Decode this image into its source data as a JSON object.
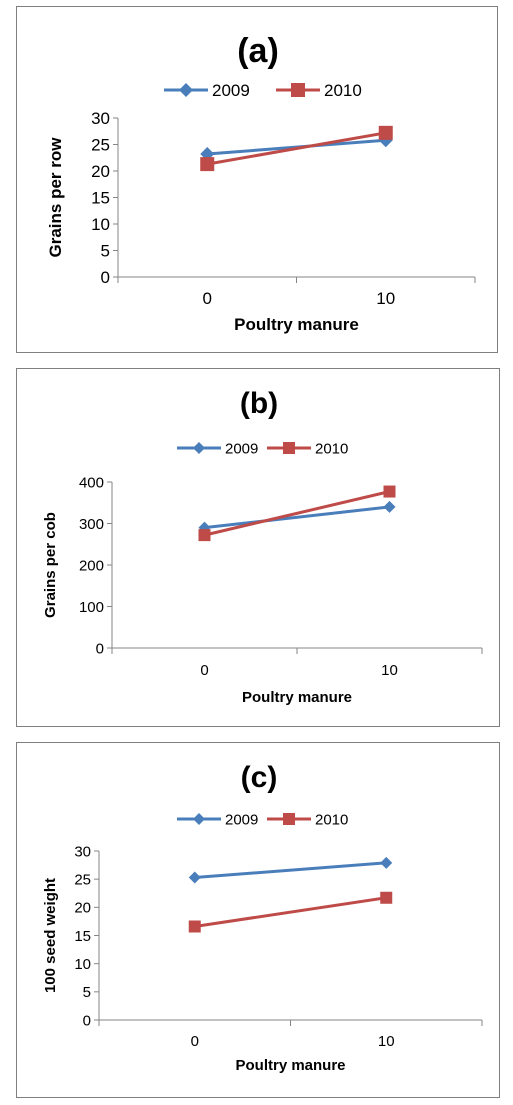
{
  "chart_data": [
    {
      "type": "line",
      "title": "(a)",
      "xlabel": "Poultry manure",
      "ylabel": "Grains per row",
      "categories": [
        "0",
        "10"
      ],
      "ylim": [
        0,
        30
      ],
      "yticks": [
        "0",
        "5",
        "10",
        "15",
        "20",
        "25",
        "30"
      ],
      "series": [
        {
          "name": "2009",
          "values": [
            23.2,
            25.8
          ],
          "color": "#4a7ebb",
          "marker": "diamond"
        },
        {
          "name": "2010",
          "values": [
            21.3,
            27.2
          ],
          "color": "#be4b48",
          "marker": "square"
        }
      ],
      "legend": "top",
      "grid": false
    },
    {
      "type": "line",
      "title": "(b)",
      "xlabel": "Poultry manure",
      "ylabel": "Grains per cob",
      "categories": [
        "0",
        "10"
      ],
      "ylim": [
        0,
        400
      ],
      "yticks": [
        "0",
        "100",
        "200",
        "300",
        "400"
      ],
      "series": [
        {
          "name": "2009",
          "values": [
            290,
            340
          ],
          "color": "#4a7ebb",
          "marker": "diamond"
        },
        {
          "name": "2010",
          "values": [
            272,
            377
          ],
          "color": "#be4b48",
          "marker": "square"
        }
      ],
      "legend": "top",
      "grid": false
    },
    {
      "type": "line",
      "title": "(c)",
      "xlabel": "Poultry manure",
      "ylabel": "100 seed weight",
      "categories": [
        "0",
        "10"
      ],
      "ylim": [
        0,
        30
      ],
      "yticks": [
        "0",
        "5",
        "10",
        "15",
        "20",
        "25",
        "30"
      ],
      "series": [
        {
          "name": "2009",
          "values": [
            25.3,
            27.9
          ],
          "color": "#4a7ebb",
          "marker": "diamond"
        },
        {
          "name": "2010",
          "values": [
            16.6,
            21.7
          ],
          "color": "#be4b48",
          "marker": "square"
        }
      ],
      "legend": "top",
      "grid": false
    }
  ]
}
